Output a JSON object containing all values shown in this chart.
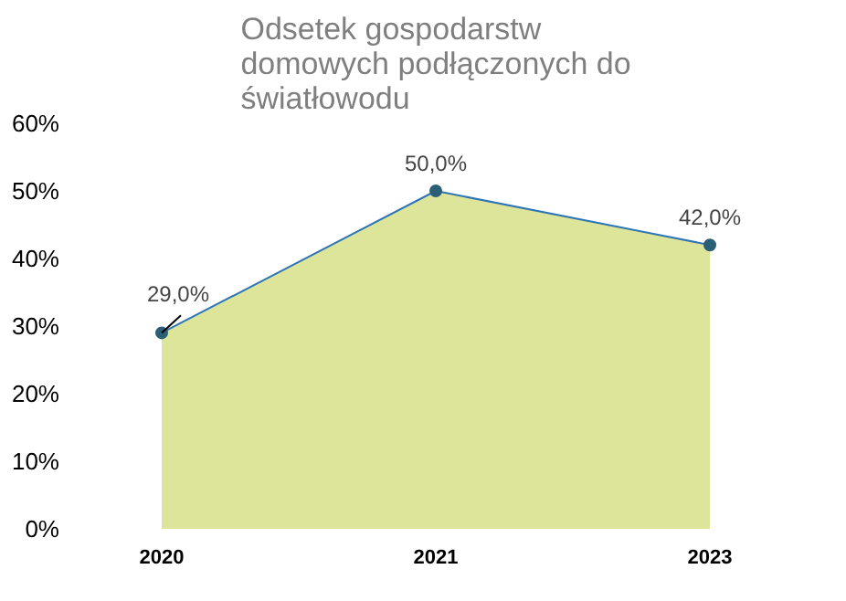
{
  "chart_data": {
    "type": "area",
    "title": "Odsetek gospodarstw domowych podłączonych do światłowodu",
    "categories": [
      "2020",
      "2021",
      "2023"
    ],
    "series": [
      {
        "color": "#dde59a",
        "values": [
          29.0,
          50.0,
          42.0
        ],
        "value_labels": [
          "29,0%",
          "50,0%",
          "42,0%"
        ]
      }
    ],
    "ylim": [
      0,
      60
    ],
    "yticks": [
      {
        "value": 0,
        "label": "0%"
      },
      {
        "value": 10,
        "label": "10%"
      },
      {
        "value": 20,
        "label": "20%"
      },
      {
        "value": 30,
        "label": "30%"
      },
      {
        "value": 40,
        "label": "40%"
      },
      {
        "value": 50,
        "label": "50%"
      },
      {
        "value": 60,
        "label": "60%"
      }
    ],
    "marker": "circle",
    "grid": false,
    "legend": false
  }
}
